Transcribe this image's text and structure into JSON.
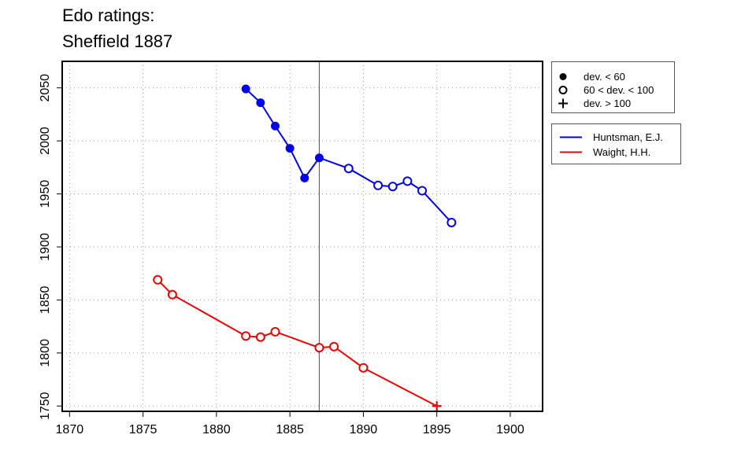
{
  "title_lines": [
    "Edo ratings:",
    "Sheffield 1887"
  ],
  "chart_data": {
    "type": "line",
    "title": "Edo ratings: Sheffield 1887",
    "xlim": [
      1869.5,
      1902.2
    ],
    "ylim": [
      1745,
      2075
    ],
    "x_ticks": [
      1870,
      1875,
      1880,
      1885,
      1890,
      1895,
      1900
    ],
    "y_ticks": [
      1750,
      1800,
      1850,
      1900,
      1950,
      2000,
      2050
    ],
    "grid": true,
    "vertical_marker": 1887,
    "marker_legend": [
      {
        "symbol": "filled-circle",
        "label": "dev. < 60"
      },
      {
        "symbol": "open-circle",
        "label": "60 < dev. < 100"
      },
      {
        "symbol": "plus",
        "label": "dev. > 100"
      }
    ],
    "series": [
      {
        "name": "Huntsman, E.J.",
        "color": "#0000ee",
        "points": [
          {
            "x": 1882,
            "y": 2049,
            "m": "filled"
          },
          {
            "x": 1883,
            "y": 2036,
            "m": "filled"
          },
          {
            "x": 1884,
            "y": 2014,
            "m": "filled"
          },
          {
            "x": 1885,
            "y": 1993,
            "m": "filled"
          },
          {
            "x": 1886,
            "y": 1965,
            "m": "filled"
          },
          {
            "x": 1887,
            "y": 1984,
            "m": "filled"
          },
          {
            "x": 1889,
            "y": 1974,
            "m": "open"
          },
          {
            "x": 1891,
            "y": 1958,
            "m": "open"
          },
          {
            "x": 1892,
            "y": 1957,
            "m": "open"
          },
          {
            "x": 1893,
            "y": 1962,
            "m": "open"
          },
          {
            "x": 1894,
            "y": 1953,
            "m": "open"
          },
          {
            "x": 1896,
            "y": 1923,
            "m": "open"
          }
        ]
      },
      {
        "name": "Waight, H.H.",
        "color": "#ee0000",
        "points": [
          {
            "x": 1876,
            "y": 1869,
            "m": "open"
          },
          {
            "x": 1877,
            "y": 1855,
            "m": "open"
          },
          {
            "x": 1882,
            "y": 1816,
            "m": "open"
          },
          {
            "x": 1883,
            "y": 1815,
            "m": "open"
          },
          {
            "x": 1884,
            "y": 1820,
            "m": "open"
          },
          {
            "x": 1887,
            "y": 1805,
            "m": "open"
          },
          {
            "x": 1888,
            "y": 1806,
            "m": "open"
          },
          {
            "x": 1890,
            "y": 1786,
            "m": "open"
          },
          {
            "x": 1895,
            "y": 1750,
            "m": "plus"
          }
        ]
      }
    ]
  }
}
